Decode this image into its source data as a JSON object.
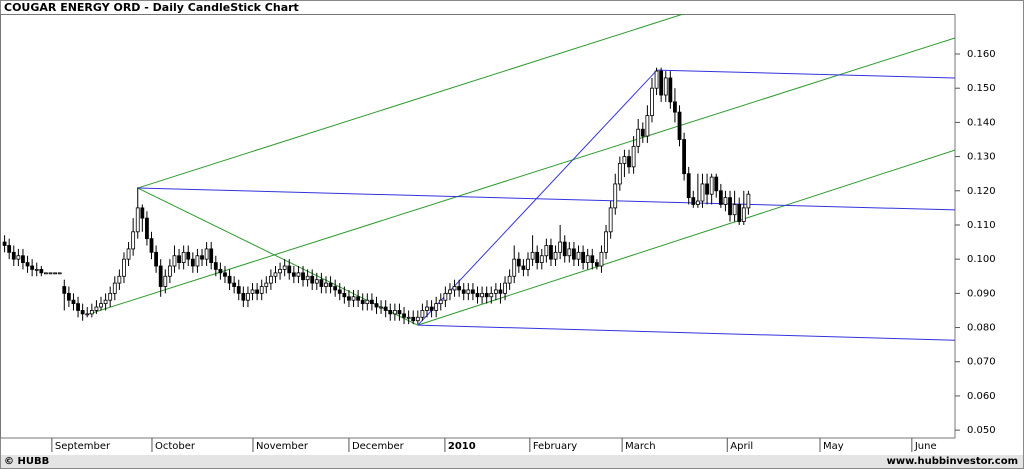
{
  "chart_data": {
    "type": "candlestick",
    "title": "COUGAR ENERGY ORD - Daily CandleStick Chart",
    "source": "© HUBB",
    "website": "www.hubbinvestor.com",
    "up_color": "#ffffff",
    "down_color": "#000000",
    "xlim": [
      -1,
      207
    ],
    "ylim": [
      0.0477,
      0.1717
    ],
    "yticks": [
      {
        "value": 0.05,
        "label": "0.050"
      },
      {
        "value": 0.06,
        "label": "0.060"
      },
      {
        "value": 0.07,
        "label": "0.070"
      },
      {
        "value": 0.08,
        "label": "0.080"
      },
      {
        "value": 0.09,
        "label": "0.090"
      },
      {
        "value": 0.1,
        "label": "0.100"
      },
      {
        "value": 0.11,
        "label": "0.110"
      },
      {
        "value": 0.12,
        "label": "0.120"
      },
      {
        "value": 0.13,
        "label": "0.130"
      },
      {
        "value": 0.14,
        "label": "0.140"
      },
      {
        "value": 0.15,
        "label": "0.150"
      },
      {
        "value": 0.16,
        "label": "0.160"
      }
    ],
    "xticks": [
      {
        "value": 10.3,
        "label": "September"
      },
      {
        "value": 32.1,
        "label": "October"
      },
      {
        "value": 54.1,
        "label": "November"
      },
      {
        "value": 75.0,
        "label": "December"
      },
      {
        "value": 95.9,
        "label": "2010"
      },
      {
        "value": 114.4,
        "label": "February"
      },
      {
        "value": 134.5,
        "label": "March"
      },
      {
        "value": 157.4,
        "label": "April"
      },
      {
        "value": 177.6,
        "label": "May"
      },
      {
        "value": 197.6,
        "label": "June"
      }
    ],
    "ohlc": [
      [
        0.105,
        0.107,
        0.102,
        0.104
      ],
      [
        0.104,
        0.106,
        0.1,
        0.102
      ],
      [
        0.102,
        0.104,
        0.098,
        0.1
      ],
      [
        0.1,
        0.103,
        0.098,
        0.101
      ],
      [
        0.101,
        0.103,
        0.097,
        0.099
      ],
      [
        0.099,
        0.101,
        0.096,
        0.098
      ],
      [
        0.098,
        0.1,
        0.095,
        0.097
      ],
      [
        0.097,
        0.099,
        0.095,
        0.097
      ],
      [
        0.097,
        0.098,
        0.095,
        0.096
      ],
      [
        0.096,
        0.096,
        0.096,
        0.096
      ],
      [
        0.096,
        0.096,
        0.096,
        0.096
      ],
      [
        0.096,
        0.096,
        0.096,
        0.096
      ],
      [
        0.096,
        0.096,
        0.096,
        0.096
      ],
      [
        0.092,
        0.094,
        0.085,
        0.09
      ],
      [
        0.09,
        0.092,
        0.086,
        0.088
      ],
      [
        0.088,
        0.09,
        0.085,
        0.087
      ],
      [
        0.087,
        0.089,
        0.083,
        0.085
      ],
      [
        0.085,
        0.087,
        0.082,
        0.084
      ],
      [
        0.084,
        0.086,
        0.083,
        0.084
      ],
      [
        0.084,
        0.087,
        0.083,
        0.085
      ],
      [
        0.085,
        0.088,
        0.084,
        0.086
      ],
      [
        0.086,
        0.089,
        0.085,
        0.087
      ],
      [
        0.087,
        0.09,
        0.085,
        0.088
      ],
      [
        0.088,
        0.092,
        0.086,
        0.09
      ],
      [
        0.09,
        0.095,
        0.088,
        0.093
      ],
      [
        0.093,
        0.097,
        0.091,
        0.095
      ],
      [
        0.095,
        0.102,
        0.093,
        0.1
      ],
      [
        0.1,
        0.105,
        0.098,
        0.103
      ],
      [
        0.103,
        0.112,
        0.101,
        0.108
      ],
      [
        0.108,
        0.121,
        0.106,
        0.115
      ],
      [
        0.115,
        0.116,
        0.108,
        0.112
      ],
      [
        0.112,
        0.114,
        0.104,
        0.106
      ],
      [
        0.106,
        0.108,
        0.1,
        0.102
      ],
      [
        0.102,
        0.104,
        0.096,
        0.098
      ],
      [
        0.098,
        0.1,
        0.089,
        0.092
      ],
      [
        0.092,
        0.097,
        0.09,
        0.095
      ],
      [
        0.095,
        0.1,
        0.093,
        0.098
      ],
      [
        0.098,
        0.104,
        0.096,
        0.101
      ],
      [
        0.101,
        0.103,
        0.097,
        0.099
      ],
      [
        0.099,
        0.104,
        0.097,
        0.102
      ],
      [
        0.102,
        0.104,
        0.098,
        0.1
      ],
      [
        0.1,
        0.102,
        0.096,
        0.098
      ],
      [
        0.098,
        0.103,
        0.096,
        0.101
      ],
      [
        0.101,
        0.103,
        0.098,
        0.1
      ],
      [
        0.1,
        0.105,
        0.098,
        0.103
      ],
      [
        0.103,
        0.105,
        0.097,
        0.099
      ],
      [
        0.099,
        0.101,
        0.095,
        0.097
      ],
      [
        0.097,
        0.099,
        0.094,
        0.096
      ],
      [
        0.096,
        0.098,
        0.093,
        0.095
      ],
      [
        0.095,
        0.097,
        0.091,
        0.093
      ],
      [
        0.093,
        0.095,
        0.09,
        0.092
      ],
      [
        0.092,
        0.094,
        0.088,
        0.09
      ],
      [
        0.09,
        0.092,
        0.086,
        0.088
      ],
      [
        0.088,
        0.092,
        0.086,
        0.09
      ],
      [
        0.09,
        0.093,
        0.088,
        0.091
      ],
      [
        0.091,
        0.093,
        0.088,
        0.09
      ],
      [
        0.09,
        0.094,
        0.088,
        0.092
      ],
      [
        0.092,
        0.095,
        0.09,
        0.093
      ],
      [
        0.093,
        0.097,
        0.091,
        0.095
      ],
      [
        0.095,
        0.098,
        0.093,
        0.096
      ],
      [
        0.096,
        0.099,
        0.094,
        0.097
      ],
      [
        0.097,
        0.1,
        0.095,
        0.098
      ],
      [
        0.098,
        0.1,
        0.094,
        0.096
      ],
      [
        0.096,
        0.098,
        0.093,
        0.095
      ],
      [
        0.095,
        0.098,
        0.093,
        0.096
      ],
      [
        0.096,
        0.098,
        0.092,
        0.094
      ],
      [
        0.094,
        0.097,
        0.092,
        0.095
      ],
      [
        0.095,
        0.097,
        0.091,
        0.093
      ],
      [
        0.093,
        0.096,
        0.091,
        0.094
      ],
      [
        0.094,
        0.096,
        0.09,
        0.092
      ],
      [
        0.092,
        0.095,
        0.09,
        0.093
      ],
      [
        0.093,
        0.095,
        0.09,
        0.092
      ],
      [
        0.092,
        0.094,
        0.089,
        0.091
      ],
      [
        0.091,
        0.093,
        0.088,
        0.09
      ],
      [
        0.09,
        0.092,
        0.087,
        0.089
      ],
      [
        0.089,
        0.091,
        0.086,
        0.088
      ],
      [
        0.088,
        0.091,
        0.086,
        0.089
      ],
      [
        0.089,
        0.091,
        0.086,
        0.088
      ],
      [
        0.088,
        0.09,
        0.085,
        0.087
      ],
      [
        0.087,
        0.09,
        0.085,
        0.088
      ],
      [
        0.088,
        0.09,
        0.085,
        0.087
      ],
      [
        0.087,
        0.089,
        0.084,
        0.086
      ],
      [
        0.086,
        0.088,
        0.084,
        0.086
      ],
      [
        0.086,
        0.088,
        0.083,
        0.085
      ],
      [
        0.085,
        0.087,
        0.082,
        0.084
      ],
      [
        0.084,
        0.087,
        0.082,
        0.085
      ],
      [
        0.085,
        0.087,
        0.082,
        0.084
      ],
      [
        0.084,
        0.086,
        0.081,
        0.083
      ],
      [
        0.083,
        0.085,
        0.081,
        0.083
      ],
      [
        0.083,
        0.085,
        0.081,
        0.082
      ],
      [
        0.082,
        0.085,
        0.081,
        0.083
      ],
      [
        0.083,
        0.087,
        0.082,
        0.085
      ],
      [
        0.085,
        0.088,
        0.083,
        0.086
      ],
      [
        0.086,
        0.088,
        0.083,
        0.085
      ],
      [
        0.085,
        0.089,
        0.083,
        0.087
      ],
      [
        0.087,
        0.09,
        0.085,
        0.088
      ],
      [
        0.088,
        0.092,
        0.086,
        0.09
      ],
      [
        0.09,
        0.093,
        0.088,
        0.091
      ],
      [
        0.091,
        0.094,
        0.089,
        0.092
      ],
      [
        0.092,
        0.094,
        0.089,
        0.091
      ],
      [
        0.091,
        0.093,
        0.088,
        0.09
      ],
      [
        0.09,
        0.093,
        0.088,
        0.091
      ],
      [
        0.091,
        0.093,
        0.088,
        0.09
      ],
      [
        0.09,
        0.092,
        0.087,
        0.089
      ],
      [
        0.089,
        0.092,
        0.087,
        0.09
      ],
      [
        0.09,
        0.092,
        0.087,
        0.089
      ],
      [
        0.089,
        0.092,
        0.087,
        0.09
      ],
      [
        0.09,
        0.093,
        0.088,
        0.091
      ],
      [
        0.091,
        0.093,
        0.087,
        0.09
      ],
      [
        0.09,
        0.095,
        0.088,
        0.093
      ],
      [
        0.093,
        0.097,
        0.091,
        0.095
      ],
      [
        0.095,
        0.104,
        0.093,
        0.1
      ],
      [
        0.1,
        0.102,
        0.096,
        0.098
      ],
      [
        0.098,
        0.1,
        0.095,
        0.097
      ],
      [
        0.097,
        0.102,
        0.095,
        0.1
      ],
      [
        0.1,
        0.107,
        0.098,
        0.102
      ],
      [
        0.102,
        0.104,
        0.097,
        0.099
      ],
      [
        0.099,
        0.103,
        0.097,
        0.101
      ],
      [
        0.101,
        0.106,
        0.099,
        0.104
      ],
      [
        0.104,
        0.106,
        0.098,
        0.1
      ],
      [
        0.1,
        0.104,
        0.098,
        0.102
      ],
      [
        0.102,
        0.11,
        0.1,
        0.105
      ],
      [
        0.105,
        0.107,
        0.099,
        0.101
      ],
      [
        0.101,
        0.105,
        0.099,
        0.103
      ],
      [
        0.103,
        0.105,
        0.098,
        0.1
      ],
      [
        0.1,
        0.104,
        0.098,
        0.102
      ],
      [
        0.102,
        0.104,
        0.097,
        0.099
      ],
      [
        0.099,
        0.103,
        0.097,
        0.101
      ],
      [
        0.101,
        0.103,
        0.097,
        0.099
      ],
      [
        0.099,
        0.1,
        0.097,
        0.098
      ],
      [
        0.098,
        0.104,
        0.096,
        0.102
      ],
      [
        0.102,
        0.11,
        0.1,
        0.108
      ],
      [
        0.108,
        0.117,
        0.106,
        0.115
      ],
      [
        0.115,
        0.125,
        0.113,
        0.122
      ],
      [
        0.122,
        0.13,
        0.12,
        0.128
      ],
      [
        0.128,
        0.132,
        0.124,
        0.13
      ],
      [
        0.13,
        0.132,
        0.125,
        0.127
      ],
      [
        0.127,
        0.136,
        0.125,
        0.133
      ],
      [
        0.133,
        0.141,
        0.131,
        0.138
      ],
      [
        0.138,
        0.14,
        0.134,
        0.136
      ],
      [
        0.136,
        0.145,
        0.134,
        0.142
      ],
      [
        0.142,
        0.153,
        0.14,
        0.15
      ],
      [
        0.15,
        0.156,
        0.148,
        0.155
      ],
      [
        0.155,
        0.156,
        0.146,
        0.148
      ],
      [
        0.148,
        0.155,
        0.146,
        0.153
      ],
      [
        0.153,
        0.155,
        0.144,
        0.146
      ],
      [
        0.146,
        0.15,
        0.14,
        0.143
      ],
      [
        0.143,
        0.145,
        0.133,
        0.135
      ],
      [
        0.135,
        0.137,
        0.123,
        0.125
      ],
      [
        0.125,
        0.127,
        0.116,
        0.118
      ],
      [
        0.118,
        0.12,
        0.115,
        0.116
      ],
      [
        0.116,
        0.125,
        0.115,
        0.117
      ],
      [
        0.117,
        0.125,
        0.115,
        0.122
      ],
      [
        0.122,
        0.125,
        0.116,
        0.119
      ],
      [
        0.119,
        0.125,
        0.116,
        0.124
      ],
      [
        0.124,
        0.125,
        0.118,
        0.12
      ],
      [
        0.12,
        0.122,
        0.115,
        0.116
      ],
      [
        0.116,
        0.12,
        0.114,
        0.118
      ],
      [
        0.118,
        0.12,
        0.111,
        0.113
      ],
      [
        0.113,
        0.12,
        0.111,
        0.116
      ],
      [
        0.116,
        0.118,
        0.11,
        0.111
      ],
      [
        0.111,
        0.12,
        0.11,
        0.115
      ],
      [
        0.115,
        0.12,
        0.113,
        0.119
      ]
    ],
    "trendlines": [
      {
        "color": "#2e9a2e",
        "points": [
          [
            29,
            0.1208
          ],
          [
            156,
            0.1752
          ]
        ]
      },
      {
        "color": "#2e9a2e",
        "points": [
          [
            18.2,
            0.0839
          ],
          [
            207,
            0.1647
          ]
        ]
      },
      {
        "color": "#2e9a2e",
        "points": [
          [
            90,
            0.0807
          ],
          [
            207,
            0.1319
          ]
        ]
      },
      {
        "color": "#2e9a2e",
        "points": [
          [
            29,
            0.1208
          ],
          [
            90,
            0.0807
          ]
        ]
      },
      {
        "color": "#3333dd",
        "points": [
          [
            29,
            0.1208
          ],
          [
            207,
            0.1144
          ]
        ]
      },
      {
        "color": "#3333dd",
        "points": [
          [
            90,
            0.0807
          ],
          [
            207,
            0.0763
          ]
        ]
      },
      {
        "color": "#3333dd",
        "points": [
          [
            90,
            0.0807
          ],
          [
            142.1,
            0.1553
          ]
        ]
      },
      {
        "color": "#3333dd",
        "points": [
          [
            142.1,
            0.1553
          ],
          [
            207,
            0.153
          ]
        ]
      }
    ]
  }
}
